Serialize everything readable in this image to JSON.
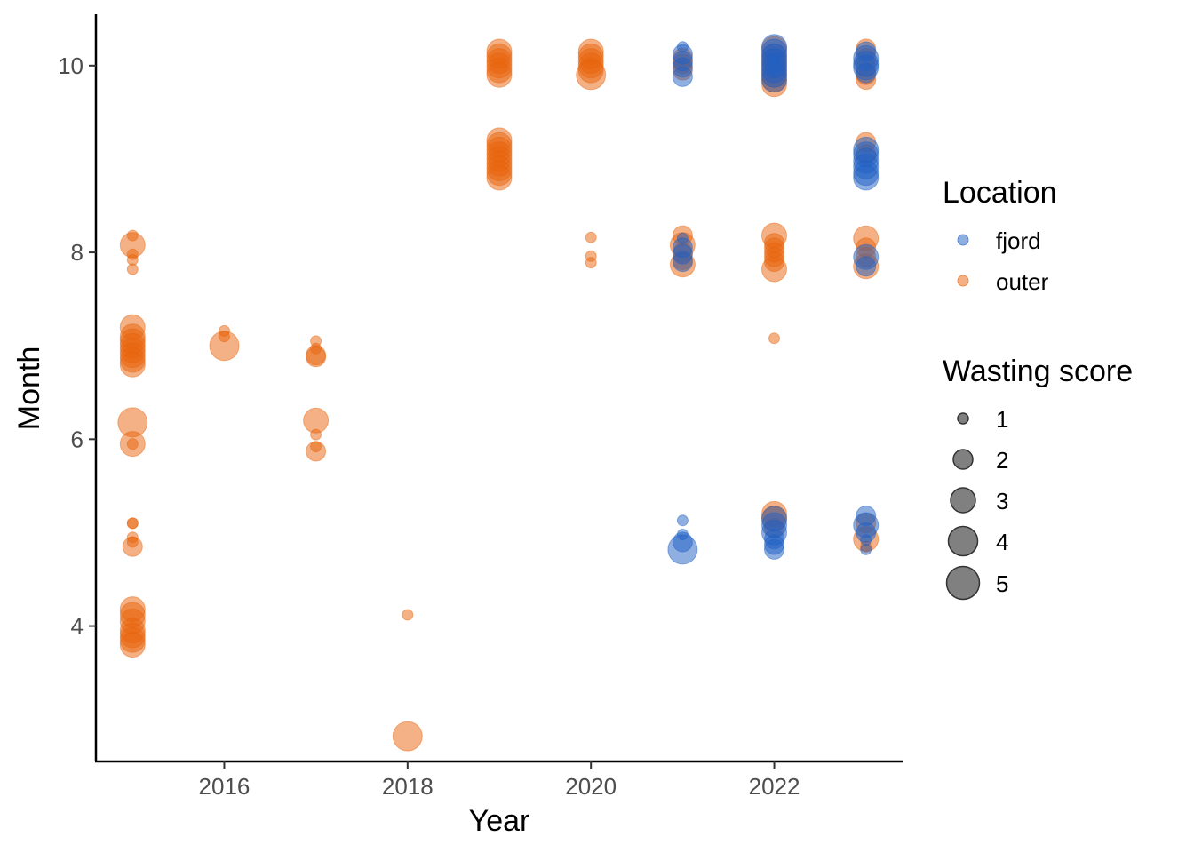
{
  "chart_data": {
    "type": "scatter",
    "xlabel": "Year",
    "ylabel": "Month",
    "xlim": [
      2014.6,
      2023.4
    ],
    "ylim": [
      2.55,
      10.55
    ],
    "x_ticks": [
      "2016",
      "2018",
      "2020",
      "2022"
    ],
    "y_ticks": [
      "4",
      "6",
      "8",
      "10"
    ],
    "grid": false,
    "legend_placement": "right",
    "colors": {
      "fjord": "#1f5fc4",
      "outer": "#e8640c",
      "size_key": "#555555"
    },
    "point_opacity": 0.5,
    "color_legend": {
      "title": "Location",
      "items": [
        "fjord",
        "outer"
      ]
    },
    "size_legend": {
      "title": "Wasting score",
      "items": [
        "1",
        "2",
        "3",
        "4",
        "5"
      ]
    },
    "series": [
      {
        "name": "outer",
        "points": [
          [
            2015,
            8.18,
            1
          ],
          [
            2015,
            8.08,
            3
          ],
          [
            2015,
            7.98,
            1
          ],
          [
            2015,
            7.92,
            1
          ],
          [
            2015,
            7.82,
            1
          ],
          [
            2015,
            7.2,
            3
          ],
          [
            2015,
            7.1,
            3
          ],
          [
            2015,
            7.05,
            3
          ],
          [
            2015,
            7.0,
            3
          ],
          [
            2015,
            6.95,
            3
          ],
          [
            2015,
            6.9,
            3
          ],
          [
            2015,
            6.85,
            3
          ],
          [
            2015,
            6.8,
            3
          ],
          [
            2015,
            6.18,
            4
          ],
          [
            2015,
            5.95,
            3
          ],
          [
            2015,
            5.95,
            1
          ],
          [
            2015,
            5.1,
            1
          ],
          [
            2015,
            5.1,
            1
          ],
          [
            2015,
            4.95,
            1
          ],
          [
            2015,
            4.9,
            1
          ],
          [
            2015,
            4.85,
            2
          ],
          [
            2015,
            4.18,
            3
          ],
          [
            2015,
            4.12,
            3
          ],
          [
            2015,
            4.05,
            3
          ],
          [
            2015,
            3.95,
            3
          ],
          [
            2015,
            3.9,
            3
          ],
          [
            2015,
            3.85,
            3
          ],
          [
            2015,
            3.8,
            3
          ],
          [
            2016,
            7.16,
            1
          ],
          [
            2016,
            7.1,
            1
          ],
          [
            2016,
            7.0,
            4
          ],
          [
            2017,
            7.05,
            1
          ],
          [
            2017,
            6.97,
            1
          ],
          [
            2017,
            6.9,
            2
          ],
          [
            2017,
            6.88,
            2
          ],
          [
            2017,
            6.2,
            3
          ],
          [
            2017,
            6.05,
            1
          ],
          [
            2017,
            5.92,
            1
          ],
          [
            2017,
            5.87,
            2
          ],
          [
            2018,
            4.12,
            1
          ],
          [
            2018,
            2.82,
            4
          ],
          [
            2019,
            10.15,
            3
          ],
          [
            2019,
            10.1,
            3
          ],
          [
            2019,
            10.05,
            3
          ],
          [
            2019,
            10.0,
            3
          ],
          [
            2019,
            9.95,
            3
          ],
          [
            2019,
            9.9,
            3
          ],
          [
            2019,
            9.2,
            3
          ],
          [
            2019,
            9.15,
            3
          ],
          [
            2019,
            9.1,
            3
          ],
          [
            2019,
            9.05,
            3
          ],
          [
            2019,
            9.0,
            3
          ],
          [
            2019,
            8.95,
            3
          ],
          [
            2019,
            8.9,
            3
          ],
          [
            2019,
            8.85,
            3
          ],
          [
            2019,
            8.8,
            3
          ],
          [
            2020,
            10.15,
            3
          ],
          [
            2020,
            10.1,
            3
          ],
          [
            2020,
            10.05,
            3
          ],
          [
            2020,
            10.0,
            3
          ],
          [
            2020,
            9.95,
            3
          ],
          [
            2020,
            9.9,
            4
          ],
          [
            2020,
            8.16,
            1
          ],
          [
            2020,
            7.96,
            1
          ],
          [
            2020,
            7.89,
            1
          ],
          [
            2021,
            10.08,
            2
          ],
          [
            2021,
            10.02,
            2
          ],
          [
            2021,
            9.95,
            2
          ],
          [
            2021,
            8.18,
            2
          ],
          [
            2021,
            8.08,
            3
          ],
          [
            2021,
            8.0,
            2
          ],
          [
            2021,
            7.92,
            2
          ],
          [
            2021,
            7.87,
            3
          ],
          [
            2022,
            10.18,
            3
          ],
          [
            2022,
            10.1,
            3
          ],
          [
            2022,
            10.05,
            3
          ],
          [
            2022,
            10.0,
            3
          ],
          [
            2022,
            9.95,
            3
          ],
          [
            2022,
            9.9,
            3
          ],
          [
            2022,
            9.85,
            3
          ],
          [
            2022,
            9.8,
            3
          ],
          [
            2022,
            8.18,
            3
          ],
          [
            2022,
            8.1,
            2
          ],
          [
            2022,
            8.05,
            2
          ],
          [
            2022,
            8.0,
            2
          ],
          [
            2022,
            7.95,
            2
          ],
          [
            2022,
            7.9,
            2
          ],
          [
            2022,
            7.82,
            3
          ],
          [
            2022,
            7.08,
            1
          ],
          [
            2022,
            5.2,
            3
          ],
          [
            2022,
            5.15,
            3
          ],
          [
            2022,
            5.05,
            2
          ],
          [
            2023,
            10.18,
            2
          ],
          [
            2023,
            10.08,
            2
          ],
          [
            2023,
            9.98,
            2
          ],
          [
            2023,
            9.9,
            2
          ],
          [
            2023,
            9.85,
            2
          ],
          [
            2023,
            9.18,
            2
          ],
          [
            2023,
            9.05,
            2
          ],
          [
            2023,
            8.15,
            3
          ],
          [
            2023,
            8.05,
            2
          ],
          [
            2023,
            7.95,
            2
          ],
          [
            2023,
            7.85,
            3
          ],
          [
            2023,
            5.1,
            2
          ],
          [
            2023,
            4.93,
            3
          ],
          [
            2023,
            4.85,
            1
          ]
        ]
      },
      {
        "name": "fjord",
        "points": [
          [
            2021,
            10.2,
            1
          ],
          [
            2021,
            10.12,
            2
          ],
          [
            2021,
            10.05,
            2
          ],
          [
            2021,
            9.98,
            2
          ],
          [
            2021,
            9.88,
            2
          ],
          [
            2021,
            8.15,
            1
          ],
          [
            2021,
            8.05,
            2
          ],
          [
            2021,
            7.98,
            2
          ],
          [
            2021,
            7.9,
            2
          ],
          [
            2021,
            5.13,
            1
          ],
          [
            2021,
            4.98,
            1
          ],
          [
            2021,
            4.9,
            2
          ],
          [
            2021,
            4.82,
            4
          ],
          [
            2022,
            10.2,
            3
          ],
          [
            2022,
            10.15,
            3
          ],
          [
            2022,
            10.1,
            3
          ],
          [
            2022,
            10.05,
            3
          ],
          [
            2022,
            10.0,
            3
          ],
          [
            2022,
            9.95,
            3
          ],
          [
            2022,
            9.9,
            3
          ],
          [
            2022,
            9.85,
            3
          ],
          [
            2022,
            5.15,
            3
          ],
          [
            2022,
            5.08,
            3
          ],
          [
            2022,
            5.0,
            3
          ],
          [
            2022,
            4.93,
            2
          ],
          [
            2022,
            4.87,
            2
          ],
          [
            2022,
            4.82,
            2
          ],
          [
            2023,
            10.15,
            2
          ],
          [
            2023,
            10.08,
            3
          ],
          [
            2023,
            10.02,
            3
          ],
          [
            2023,
            9.98,
            3
          ],
          [
            2023,
            9.92,
            2
          ],
          [
            2023,
            9.1,
            3
          ],
          [
            2023,
            9.05,
            3
          ],
          [
            2023,
            8.98,
            3
          ],
          [
            2023,
            8.92,
            3
          ],
          [
            2023,
            8.85,
            3
          ],
          [
            2023,
            8.8,
            3
          ],
          [
            2023,
            7.95,
            3
          ],
          [
            2023,
            7.85,
            2
          ],
          [
            2023,
            5.18,
            2
          ],
          [
            2023,
            5.08,
            3
          ],
          [
            2023,
            5.0,
            2
          ],
          [
            2023,
            4.92,
            1
          ],
          [
            2023,
            4.82,
            1
          ]
        ]
      }
    ]
  }
}
